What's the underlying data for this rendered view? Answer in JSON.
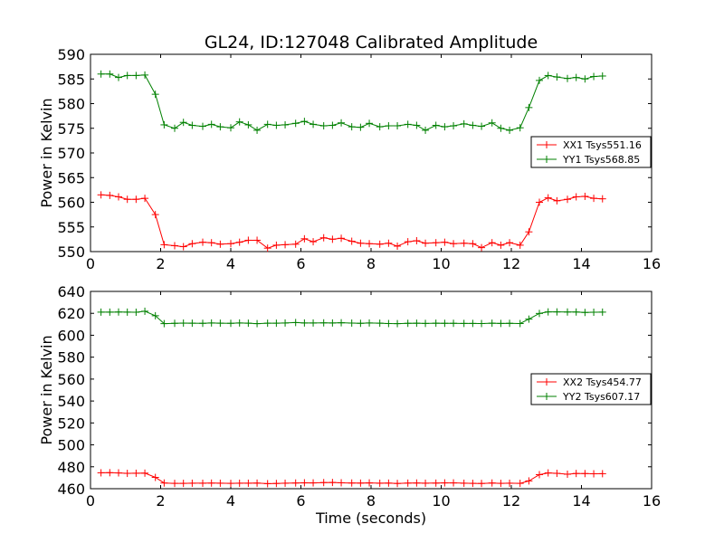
{
  "chart_data": [
    {
      "type": "line",
      "title": "GL24, ID:127048 Calibrated Amplitude",
      "xlabel": "",
      "ylabel": "Power in Kelvin",
      "xlim": [
        0,
        16
      ],
      "ylim": [
        550,
        590
      ],
      "xticks": [
        0,
        2,
        4,
        6,
        8,
        10,
        12,
        14,
        16
      ],
      "yticks": [
        550,
        555,
        560,
        565,
        570,
        575,
        580,
        585,
        590
      ],
      "grid": false,
      "legend_position": "right",
      "x": [
        0.3,
        0.55,
        0.8,
        1.05,
        1.3,
        1.55,
        1.85,
        2.1,
        2.4,
        2.65,
        2.9,
        3.2,
        3.45,
        3.7,
        4.0,
        4.25,
        4.5,
        4.75,
        5.05,
        5.3,
        5.55,
        5.85,
        6.1,
        6.35,
        6.65,
        6.9,
        7.15,
        7.45,
        7.7,
        7.95,
        8.25,
        8.5,
        8.75,
        9.05,
        9.3,
        9.55,
        9.85,
        10.1,
        10.35,
        10.65,
        10.9,
        11.15,
        11.45,
        11.7,
        11.95,
        12.25,
        12.5,
        12.8,
        13.05,
        13.3,
        13.6,
        13.85,
        14.1,
        14.35,
        14.6
      ],
      "series": [
        {
          "name": "XX1 Tsys551.16",
          "color": "#ff0000",
          "values": [
            561.5,
            561.4,
            561.1,
            560.6,
            560.6,
            560.8,
            557.5,
            551.4,
            551.2,
            551.0,
            551.6,
            551.9,
            551.8,
            551.5,
            551.6,
            551.9,
            552.3,
            552.3,
            550.7,
            551.3,
            551.4,
            551.5,
            552.6,
            552.0,
            552.8,
            552.5,
            552.7,
            552.1,
            551.7,
            551.6,
            551.5,
            551.7,
            551.1,
            552.0,
            552.2,
            551.7,
            551.8,
            551.9,
            551.6,
            551.7,
            551.6,
            550.8,
            551.8,
            551.3,
            551.8,
            551.3,
            554.0,
            560.0,
            560.9,
            560.3,
            560.6,
            561.1,
            561.2,
            560.8,
            560.7
          ]
        },
        {
          "name": "YY1 Tsys568.85",
          "color": "#008000",
          "values": [
            586.0,
            586.0,
            585.3,
            585.7,
            585.7,
            585.8,
            581.9,
            575.7,
            575.0,
            576.2,
            575.6,
            575.4,
            575.8,
            575.3,
            575.1,
            576.3,
            575.7,
            574.6,
            575.8,
            575.6,
            575.7,
            576.0,
            576.4,
            575.8,
            575.5,
            575.6,
            576.1,
            575.3,
            575.2,
            576.0,
            575.3,
            575.5,
            575.5,
            575.8,
            575.6,
            574.6,
            575.6,
            575.3,
            575.5,
            575.9,
            575.6,
            575.4,
            576.1,
            575.0,
            574.6,
            575.1,
            579.2,
            584.7,
            585.7,
            585.4,
            585.1,
            585.3,
            585.0,
            585.5,
            585.6
          ]
        }
      ]
    },
    {
      "type": "line",
      "title": "",
      "xlabel": "Time (seconds)",
      "ylabel": "Power in Kelvin",
      "xlim": [
        0,
        16
      ],
      "ylim": [
        460,
        640
      ],
      "xticks": [
        0,
        2,
        4,
        6,
        8,
        10,
        12,
        14,
        16
      ],
      "yticks": [
        460,
        480,
        500,
        520,
        540,
        560,
        580,
        600,
        620,
        640
      ],
      "grid": false,
      "legend_position": "right",
      "x": [
        0.3,
        0.55,
        0.8,
        1.05,
        1.3,
        1.55,
        1.85,
        2.1,
        2.4,
        2.65,
        2.9,
        3.2,
        3.45,
        3.7,
        4.0,
        4.25,
        4.5,
        4.75,
        5.05,
        5.3,
        5.55,
        5.85,
        6.1,
        6.35,
        6.65,
        6.9,
        7.15,
        7.45,
        7.7,
        7.95,
        8.25,
        8.5,
        8.75,
        9.05,
        9.3,
        9.55,
        9.85,
        10.1,
        10.35,
        10.65,
        10.9,
        11.15,
        11.45,
        11.7,
        11.95,
        12.25,
        12.5,
        12.8,
        13.05,
        13.3,
        13.6,
        13.85,
        14.1,
        14.35,
        14.6
      ],
      "series": [
        {
          "name": "XX2 Tsys454.77",
          "color": "#ff0000",
          "values": [
            474.5,
            474.6,
            474.4,
            474.0,
            474.1,
            474.2,
            470.3,
            465.2,
            464.9,
            464.9,
            465.0,
            465.0,
            465.1,
            465.0,
            464.9,
            465.0,
            465.0,
            465.1,
            464.6,
            464.8,
            465.0,
            465.2,
            465.4,
            465.3,
            465.6,
            465.7,
            465.4,
            465.2,
            465.1,
            465.3,
            465.0,
            465.1,
            464.8,
            465.1,
            465.2,
            465.0,
            465.1,
            465.3,
            465.3,
            465.0,
            464.9,
            464.8,
            465.2,
            464.9,
            465.0,
            464.9,
            467.1,
            472.8,
            474.4,
            474.0,
            473.2,
            473.9,
            473.8,
            473.6,
            473.7
          ]
        },
        {
          "name": "YY2 Tsys607.17",
          "color": "#008000",
          "values": [
            621.1,
            621.1,
            621.2,
            621.1,
            621.0,
            621.9,
            617.8,
            610.6,
            610.9,
            611.1,
            611.0,
            610.9,
            611.2,
            611.0,
            610.9,
            611.2,
            611.0,
            610.6,
            611.0,
            611.0,
            611.2,
            611.6,
            611.2,
            611.2,
            611.3,
            611.2,
            611.4,
            611.1,
            610.9,
            611.2,
            611.0,
            610.7,
            610.6,
            610.9,
            611.0,
            610.8,
            611.0,
            610.9,
            610.9,
            610.8,
            610.8,
            610.7,
            611.0,
            610.8,
            610.9,
            610.7,
            614.7,
            619.9,
            621.3,
            621.3,
            621.2,
            621.2,
            620.8,
            621.0,
            621.1
          ]
        }
      ]
    }
  ]
}
